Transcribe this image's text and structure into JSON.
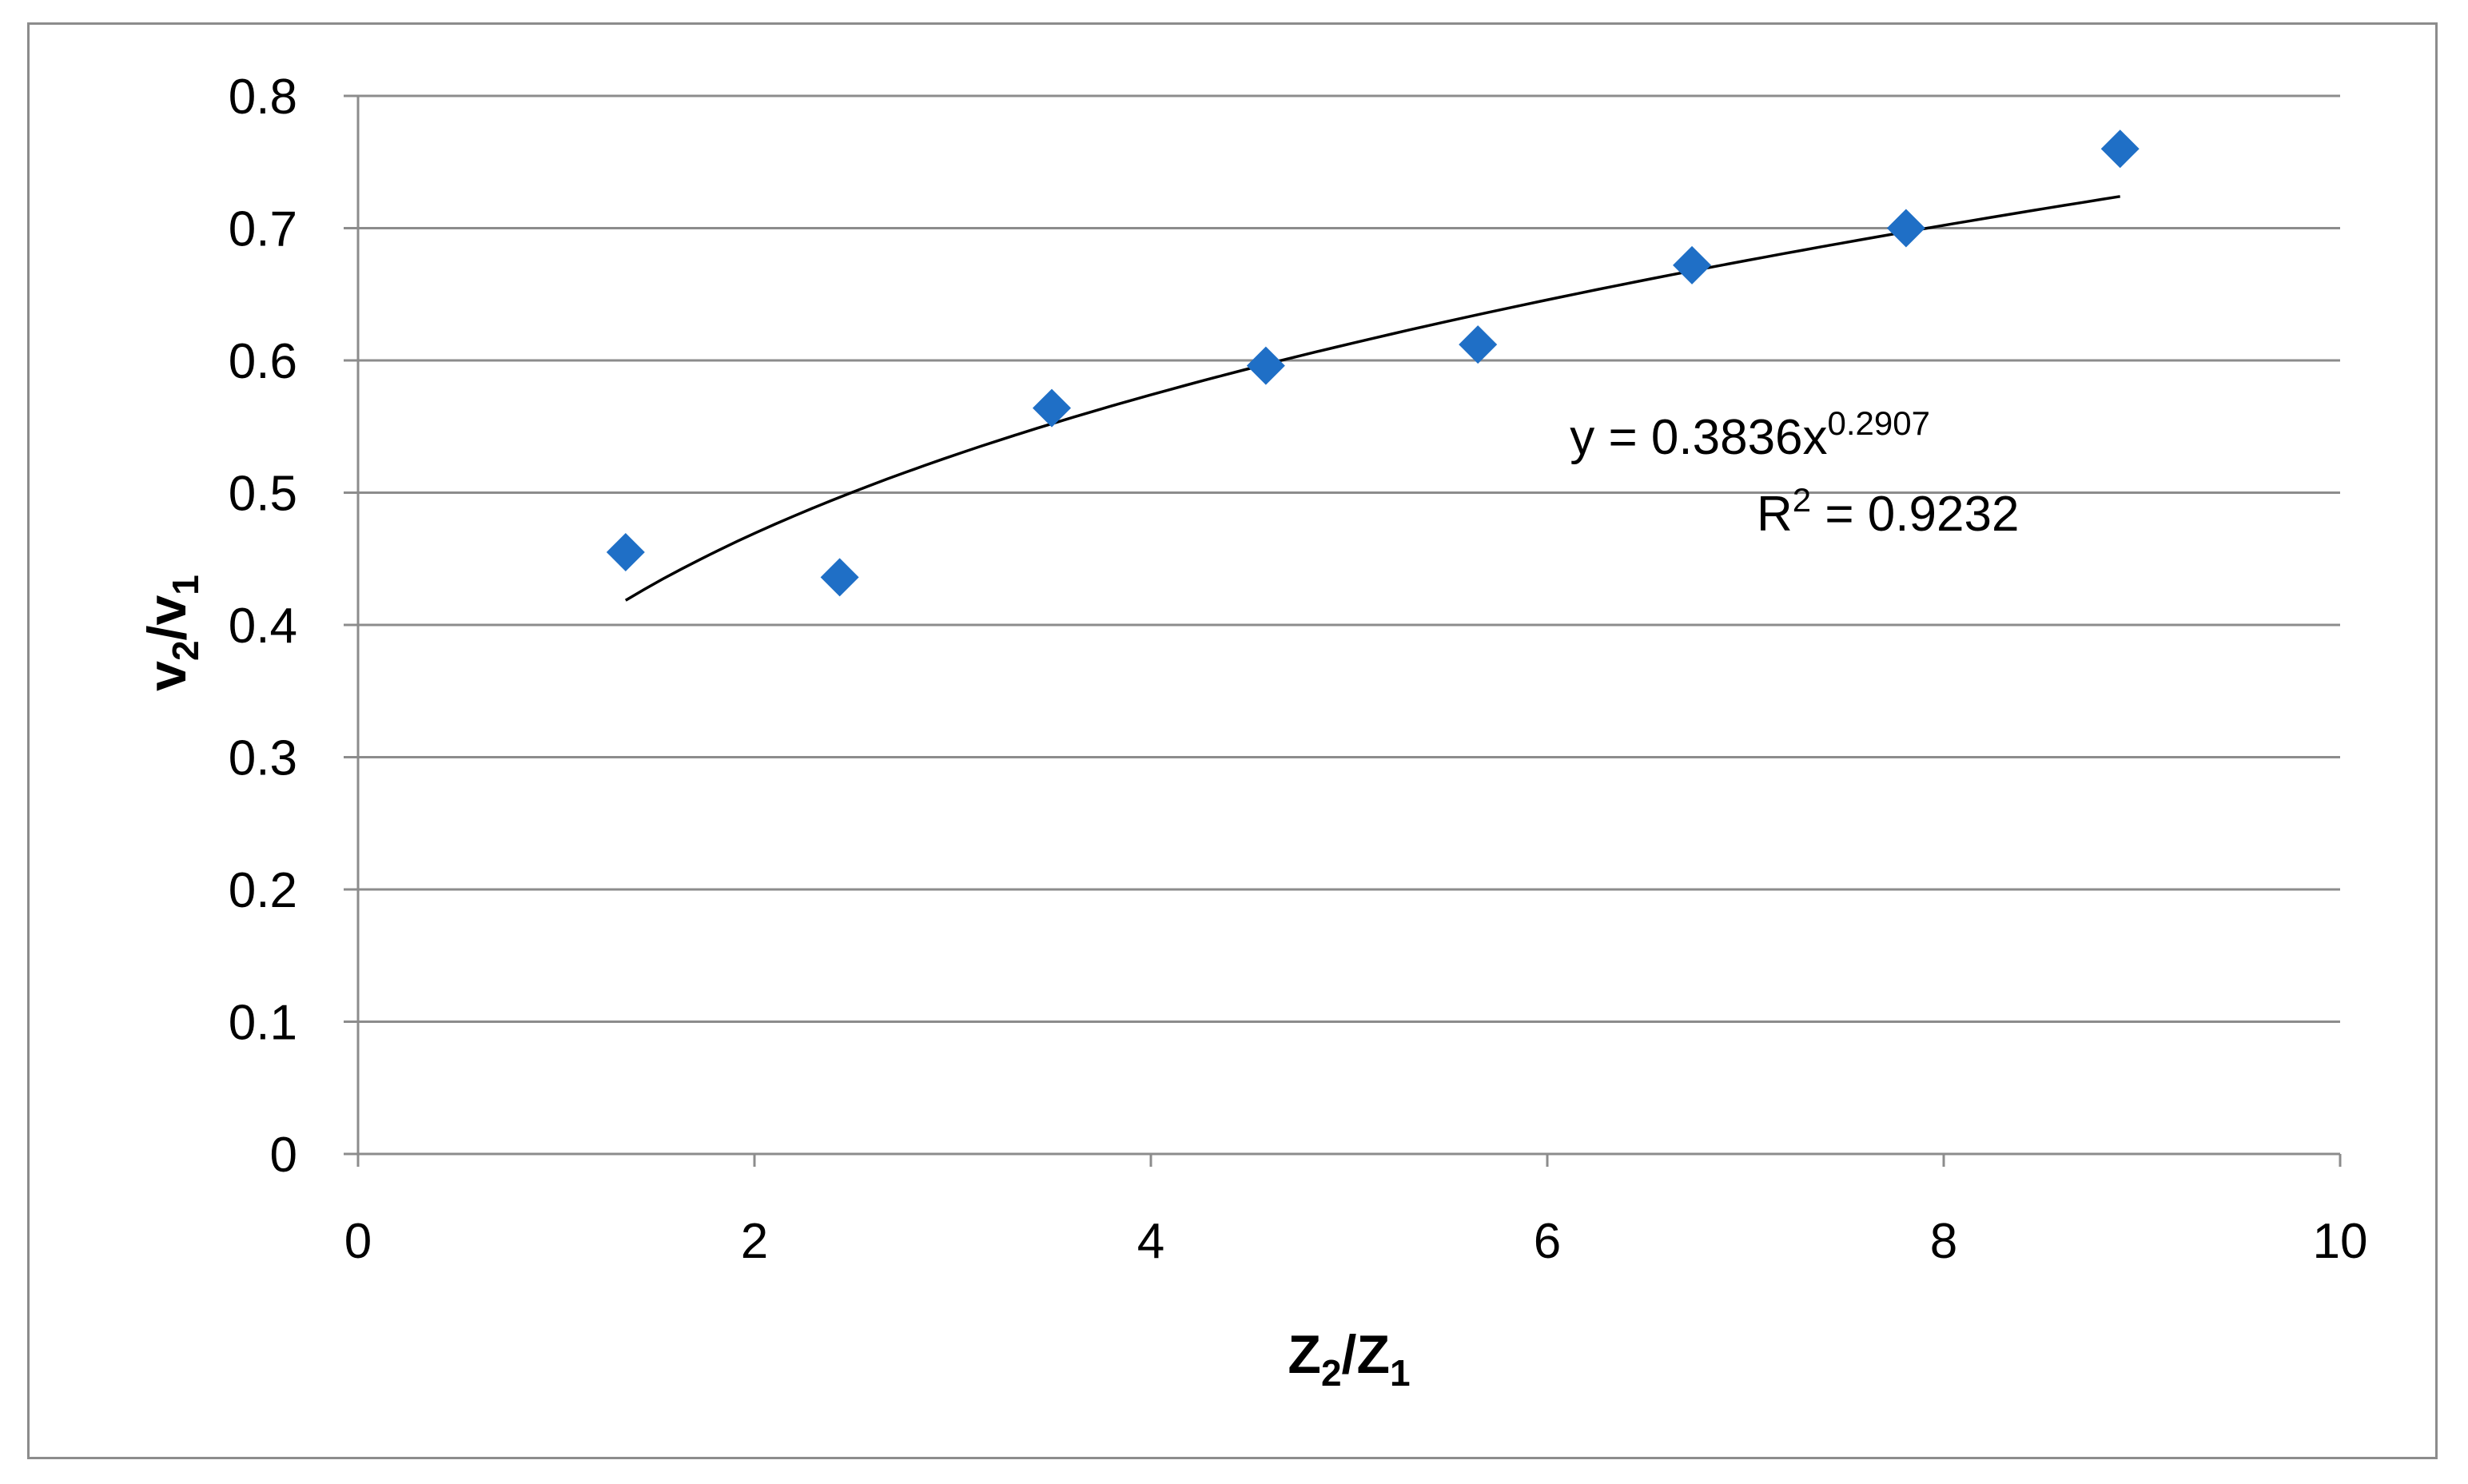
{
  "chart_data": {
    "type": "scatter",
    "x": [
      1.35,
      2.43,
      3.5,
      4.58,
      5.65,
      6.73,
      7.81,
      8.89
    ],
    "y": [
      0.455,
      0.436,
      0.564,
      0.596,
      0.612,
      0.672,
      0.7,
      0.76
    ],
    "xlabel": {
      "main": "Z",
      "sub1": "2",
      "slash": "/",
      "main2": "Z",
      "sub2": "1"
    },
    "ylabel": {
      "main": "v",
      "sub1": "2",
      "slash": "/",
      "main2": "v",
      "sub2": "1"
    },
    "xlim": [
      0,
      10
    ],
    "ylim": [
      0,
      0.8
    ],
    "xticks": [
      "0",
      "2",
      "4",
      "6",
      "8",
      "10"
    ],
    "yticks": [
      "0",
      "0.1",
      "0.2",
      "0.3",
      "0.4",
      "0.5",
      "0.6",
      "0.7",
      "0.8"
    ],
    "grid": "horizontal",
    "trendline": {
      "kind": "power",
      "a": 0.3836,
      "b": 0.2907,
      "equation_base": "y = 0.3836x",
      "equation_exponent": "0.2907",
      "r2_base": "R",
      "r2_exponent": "2",
      "r2_value": " = 0.9232"
    },
    "marker_color": "#1f6fc6",
    "line_color": "#000000",
    "grid_color": "#8c8c8c"
  }
}
